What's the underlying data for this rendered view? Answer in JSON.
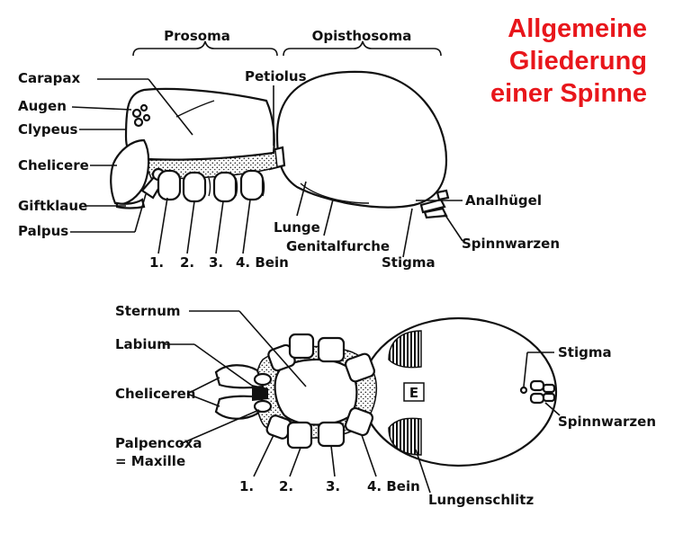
{
  "title": {
    "line1": "Allgemeine",
    "line2": "Gliederung",
    "line3": "einer Spinne",
    "color": "#e8161b"
  },
  "side_view": {
    "group_labels": {
      "prosoma": "Prosoma",
      "opisthosoma": "Opisthosoma"
    },
    "labels": {
      "carapax": "Carapax",
      "augen": "Augen",
      "clypeus": "Clypeus",
      "chelicere": "Chelicere",
      "giftklaue": "Giftklaue",
      "palpus": "Palpus",
      "petiolus": "Petiolus",
      "analhuegel": "Analhügel",
      "spinnwarzen": "Spinnwarzen",
      "lunge": "Lunge",
      "genitalfurche": "Genitalfurche",
      "stigma": "Stigma"
    },
    "legs": [
      "1.",
      "2.",
      "3.",
      "4. Bein"
    ]
  },
  "ventral_view": {
    "labels": {
      "sternum": "Sternum",
      "labium": "Labium",
      "cheliceren": "Cheliceren",
      "palpencoxa_1": "Palpencoxa",
      "palpencoxa_2": "= Maxille",
      "stigma": "Stigma",
      "spinnwarzen": "Spinnwarzen",
      "lungenschlitz": "Lungenschlitz",
      "epigyne_mark": "E"
    },
    "legs": [
      "1.",
      "2.",
      "3.",
      "4. Bein"
    ]
  }
}
